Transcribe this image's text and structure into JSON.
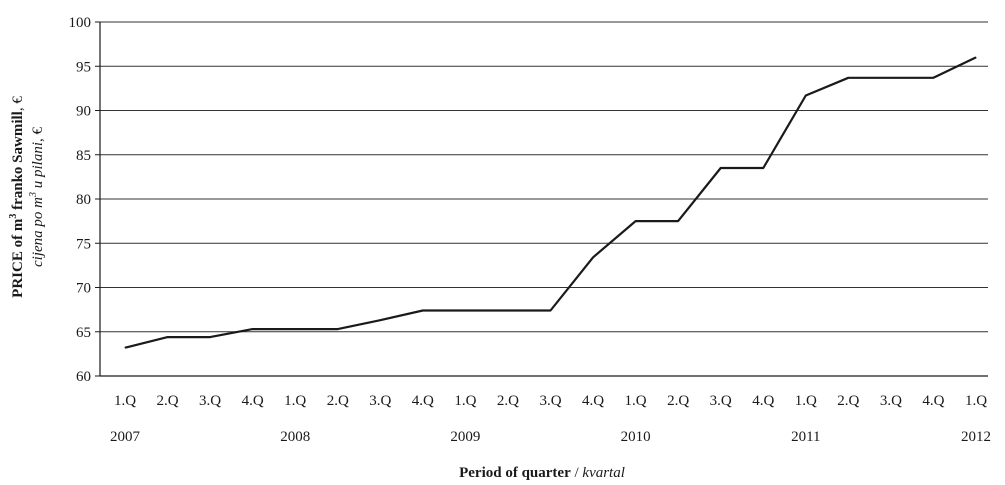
{
  "chart_data": {
    "type": "line",
    "x": [
      "1.Q",
      "2.Q",
      "3.Q",
      "4.Q",
      "1.Q",
      "2.Q",
      "3.Q",
      "4.Q",
      "1.Q",
      "2.Q",
      "3.Q",
      "4.Q",
      "1.Q",
      "2.Q",
      "3.Q",
      "4.Q",
      "1.Q",
      "2.Q",
      "3.Q",
      "4.Q",
      "1.Q"
    ],
    "years": [
      {
        "label": "2007",
        "index": 0
      },
      {
        "label": "2008",
        "index": 4
      },
      {
        "label": "2009",
        "index": 8
      },
      {
        "label": "2010",
        "index": 12
      },
      {
        "label": "2011",
        "index": 16
      },
      {
        "label": "2012",
        "index": 20
      }
    ],
    "series": [
      {
        "values": [
          63.2,
          64.4,
          64.4,
          65.3,
          65.3,
          65.3,
          66.3,
          67.4,
          67.4,
          67.4,
          67.4,
          73.4,
          77.5,
          77.5,
          83.5,
          83.5,
          91.7,
          93.7,
          93.7,
          93.7,
          96.0
        ]
      }
    ],
    "ylim": [
      60,
      100
    ],
    "yticks": [
      60,
      65,
      70,
      75,
      80,
      85,
      90,
      95,
      100
    ],
    "grid": "horizontal",
    "ylabel": {
      "bold_prefix": "PRICE of m",
      "bold_sup": "3",
      "bold_suffix": " franko Sawmill",
      "plain_suffix": ", €",
      "italic_prefix": "cijena po m",
      "italic_sup": "3",
      "italic_suffix": " u pilani",
      "italic_plain_suffix": ", €"
    },
    "xlabel": {
      "bold": "Period of quarter",
      "sep": " / ",
      "italic": "kvartal"
    },
    "colors": {
      "line": "#1a1a1a",
      "grid": "#333333",
      "axis": "#1a1a1a"
    }
  }
}
